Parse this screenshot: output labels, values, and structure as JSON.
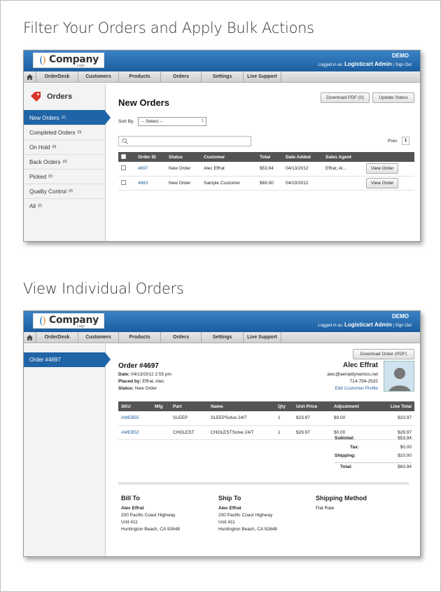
{
  "headings": {
    "first": "Filter Your Orders and Apply Bulk Actions",
    "second": "View Individual Orders"
  },
  "app": {
    "logo_text": "Company",
    "logo_sub": "Logo",
    "env": "DEMO",
    "logged_prefix": "Logged in as:",
    "user": "Logisticart Admin",
    "separator": "|",
    "signout": "Sign Out",
    "nav": [
      "OrderDesk",
      "Customers",
      "Products",
      "Orders",
      "Settings",
      "Live Support"
    ]
  },
  "list": {
    "sidebar_title": "Orders",
    "sidebar": [
      {
        "label": "New Orders",
        "count": "(2)"
      },
      {
        "label": "Completed Orders",
        "count": "(0)"
      },
      {
        "label": "On Hold",
        "count": "(0)"
      },
      {
        "label": "Back Orders",
        "count": "(0)"
      },
      {
        "label": "Picked",
        "count": "(0)"
      },
      {
        "label": "Quality Control",
        "count": "(0)"
      },
      {
        "label": "All",
        "count": "(2)"
      }
    ],
    "title": "New Orders",
    "download_btn": "Download PDF (0)",
    "update_btn": "Update Status",
    "sortby_label": "Sort By:",
    "sort_value": "-- Select --",
    "prev": "Prev",
    "page": "1",
    "columns": [
      "Order ID",
      "Status",
      "Customer",
      "Total",
      "Date Added",
      "Sales Agent"
    ],
    "rows": [
      {
        "id": "4697",
        "status": "New Order",
        "customer": "Alec Effrat",
        "total": "$53.94",
        "date": "04/13/2012",
        "agent": "Effrat, Al...",
        "action": "View Order"
      },
      {
        "id": "4663",
        "status": "New Order",
        "customer": "Sample Customer",
        "total": "$69.90",
        "date": "04/10/2012",
        "agent": "",
        "action": "View Order"
      }
    ]
  },
  "detail": {
    "sidebar_item": "Order #4697",
    "download_btn": "Download Order (PDF)",
    "order_title": "Order #4697",
    "meta": [
      {
        "k": "Date:",
        "v": "04/13/2012 2:55 pm"
      },
      {
        "k": "Placed by:",
        "v": "Effrat, Alec"
      },
      {
        "k": "Status:",
        "v": "New Order"
      }
    ],
    "customer": {
      "name": "Alec Effrat",
      "email": "alec@aerialdynamics.net",
      "phone": "714-794-2532",
      "edit": "Edit Customer Profile"
    },
    "columns": [
      "SKU",
      "Mfg",
      "Part",
      "Name",
      "Qty",
      "Unit Price",
      "Adjustment",
      "Line Total"
    ],
    "rows": [
      {
        "sku": "AMEB55",
        "mfg": "",
        "part": "SLEEP",
        "name": "SLEEPSolve 24/7",
        "qty": "1",
        "unit": "$23.97",
        "adj": "$0.00",
        "total": "$23.97"
      },
      {
        "sku": "AMEB52",
        "mfg": "",
        "part": "CHOLEST",
        "name": "CHOLESTSolve 24/7",
        "qty": "1",
        "unit": "$29.97",
        "adj": "$0.00",
        "total": "$29.97"
      }
    ],
    "totals": [
      {
        "k": "Subtotal:",
        "v": "$53.94"
      },
      {
        "k": "Tax:",
        "v": "$0.00"
      },
      {
        "k": "Shipping:",
        "v": "$10.00"
      },
      {
        "k": "Total:",
        "v": "$63.94"
      }
    ],
    "bill": {
      "title": "Bill To",
      "name": "Alec Effrat",
      "l1": "200 Pacific Coast Highway",
      "l2": "Unit 411",
      "l3": "Huntington Beach, CA 92648"
    },
    "ship": {
      "title": "Ship To",
      "name": "Alec Effrat",
      "l1": "200 Pacific Coast Highway",
      "l2": "Unit 411",
      "l3": "Huntington Beach, CA 92648"
    },
    "method": {
      "title": "Shipping Method",
      "value": "Flat Rate"
    }
  }
}
